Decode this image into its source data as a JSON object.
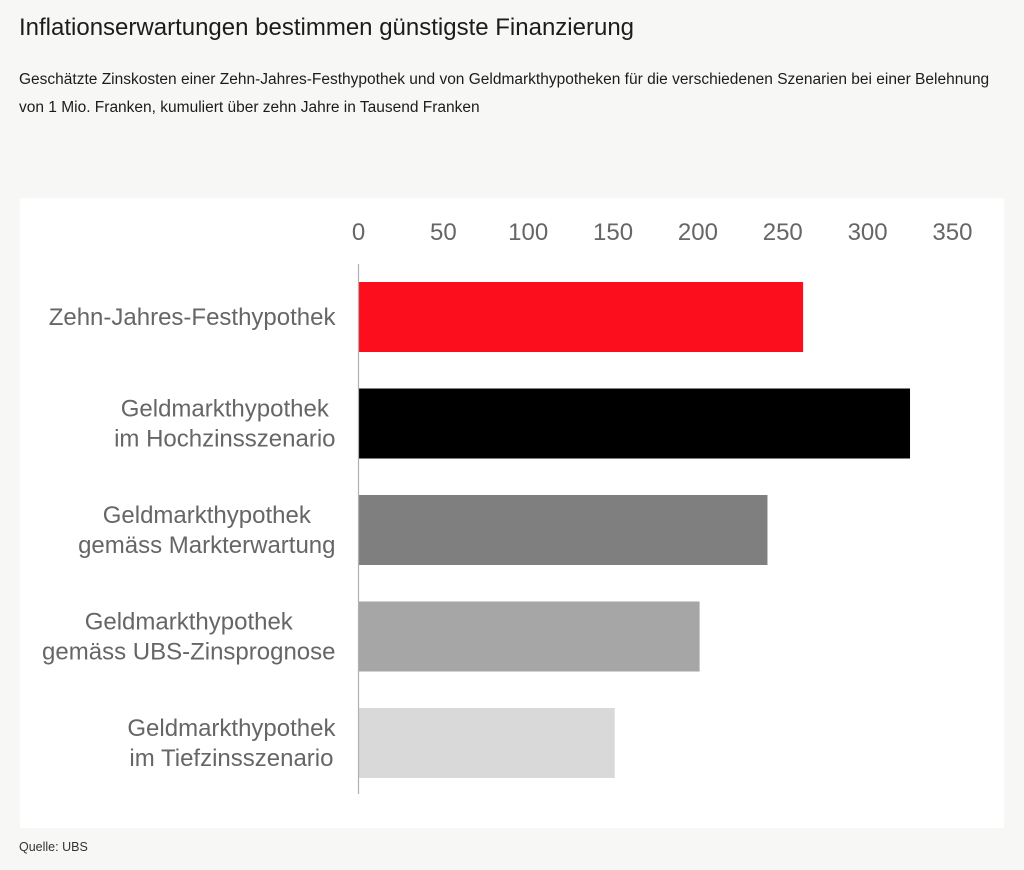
{
  "header": {
    "title": "Inflationserwartungen bestimmen günstigste Finanzierung",
    "subtitle": "Geschätzte Zinskosten einer Zehn-Jahres-Festhypothek und von Geldmarkthypotheken für die verschiedenen Szenarien bei einer Belehnung von 1 Mio. Franken, kumuliert über zehn Jahre in Tausend Franken"
  },
  "footer": {
    "source": "Quelle: UBS"
  },
  "chart_data": {
    "type": "bar",
    "orientation": "horizontal",
    "title": "Inflationserwartungen bestimmen günstigste Finanzierung",
    "xlabel": "",
    "ylabel": "",
    "xlim": [
      0,
      350
    ],
    "ticks": [
      0,
      50,
      100,
      150,
      200,
      250,
      300,
      350
    ],
    "grid": false,
    "categories": [
      [
        "Zehn-Jahres-Festhypothek"
      ],
      [
        "Geldmarkthypothek",
        "im Hochzinsszenario"
      ],
      [
        "Geldmarkthypothek",
        "gemäss Markterwartung"
      ],
      [
        "Geldmarkthypothek",
        "gemäss UBS-Zinsprognose"
      ],
      [
        "Geldmarkthypothek",
        "im Tiefzinsszenario"
      ]
    ],
    "values": [
      262,
      325,
      241,
      201,
      151
    ],
    "colors": [
      "#fc0e1c",
      "#000000",
      "#7f7f7f",
      "#a6a6a6",
      "#d9d9d9"
    ]
  }
}
